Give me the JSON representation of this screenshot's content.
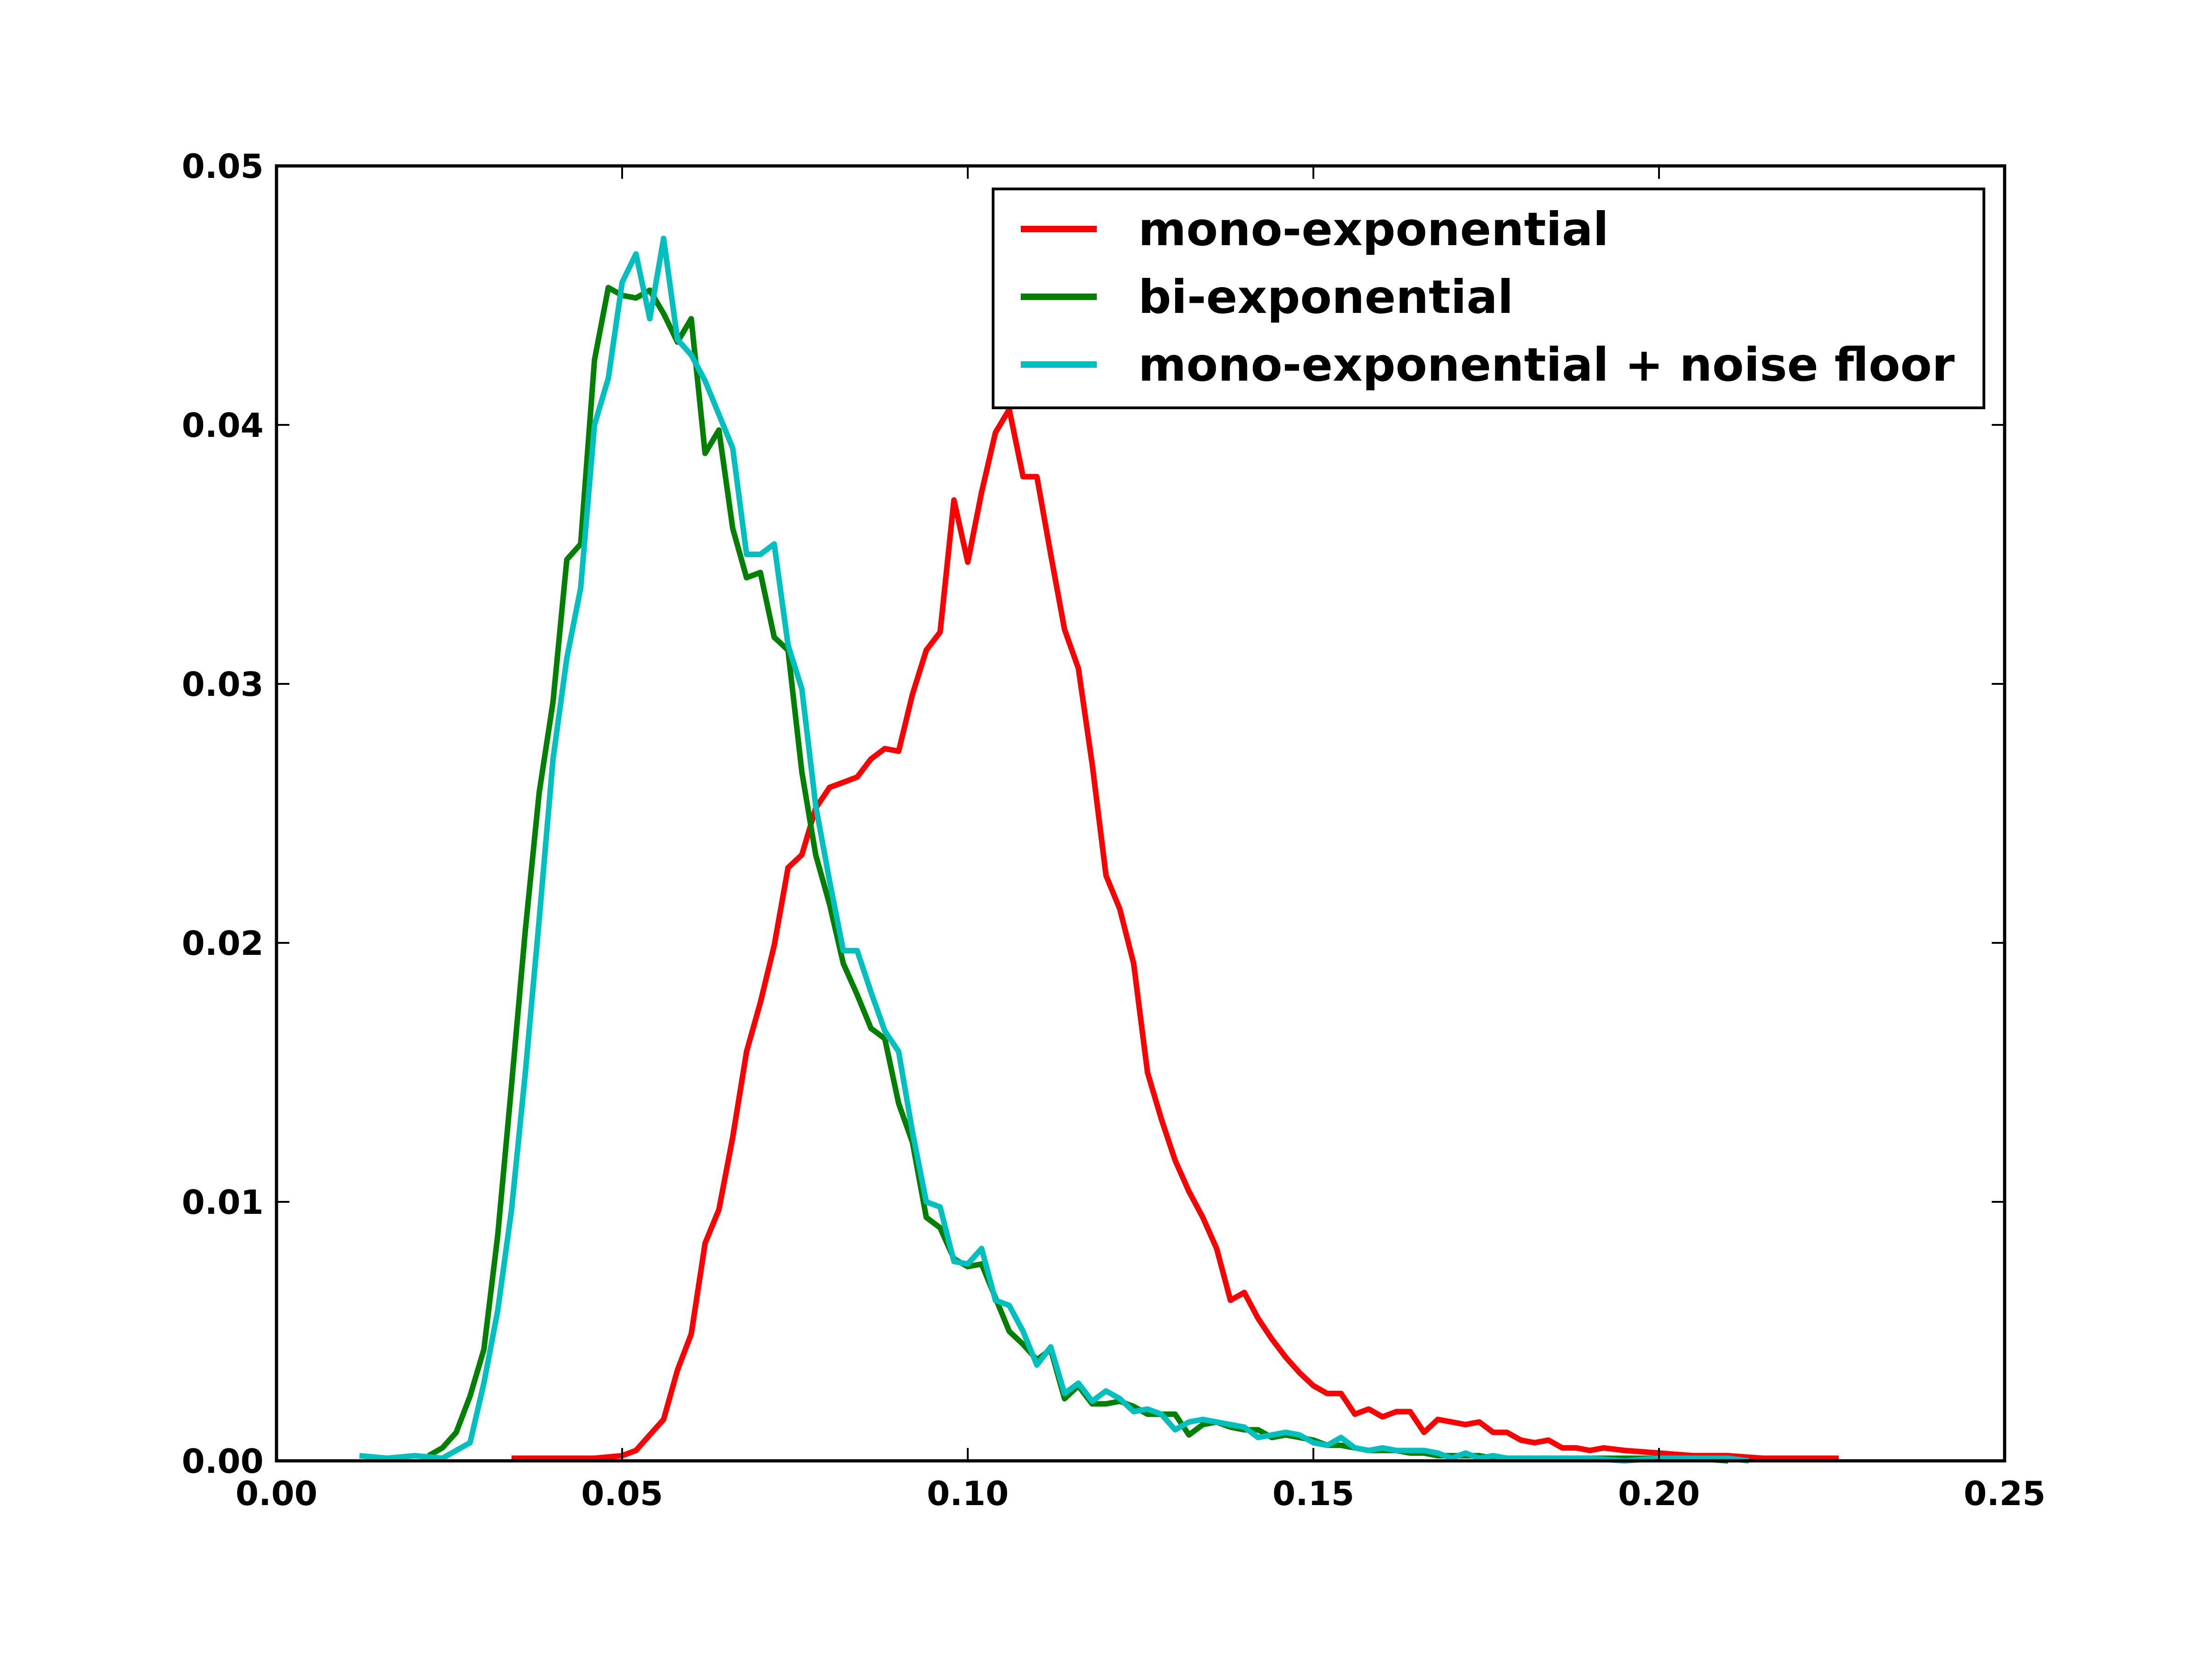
{
  "chart_data": {
    "type": "line",
    "title": "",
    "xlabel": "",
    "ylabel": "",
    "xlim": [
      0.0,
      0.25
    ],
    "ylim": [
      0.0,
      0.05
    ],
    "x_ticks": [
      "0.00",
      "0.05",
      "0.10",
      "0.15",
      "0.20",
      "0.25"
    ],
    "y_ticks": [
      "0.00",
      "0.01",
      "0.02",
      "0.03",
      "0.04",
      "0.05"
    ],
    "grid": false,
    "legend_position": "top-right",
    "series": [
      {
        "name": "mono-exponential",
        "color": "#ff0000",
        "x": [
          0.034,
          0.038,
          0.042,
          0.046,
          0.05,
          0.052,
          0.054,
          0.056,
          0.058,
          0.06,
          0.062,
          0.064,
          0.066,
          0.068,
          0.07,
          0.072,
          0.074,
          0.076,
          0.078,
          0.08,
          0.082,
          0.084,
          0.086,
          0.088,
          0.09,
          0.092,
          0.094,
          0.096,
          0.098,
          0.1,
          0.102,
          0.104,
          0.106,
          0.108,
          0.11,
          0.112,
          0.114,
          0.116,
          0.118,
          0.12,
          0.122,
          0.124,
          0.126,
          0.128,
          0.13,
          0.132,
          0.134,
          0.136,
          0.138,
          0.14,
          0.142,
          0.144,
          0.146,
          0.148,
          0.15,
          0.152,
          0.154,
          0.156,
          0.158,
          0.16,
          0.162,
          0.164,
          0.166,
          0.168,
          0.17,
          0.172,
          0.174,
          0.176,
          0.178,
          0.18,
          0.182,
          0.184,
          0.186,
          0.188,
          0.19,
          0.192,
          0.195,
          0.2,
          0.205,
          0.21,
          0.215,
          0.22,
          0.226
        ],
        "y": [
          0.0001,
          0.0001,
          0.0001,
          0.0001,
          0.0002,
          0.0004,
          0.001,
          0.0016,
          0.0035,
          0.0049,
          0.0084,
          0.0097,
          0.0125,
          0.0158,
          0.0177,
          0.0199,
          0.0229,
          0.0234,
          0.0252,
          0.026,
          0.0262,
          0.0264,
          0.0271,
          0.0275,
          0.0274,
          0.0296,
          0.0313,
          0.032,
          0.0371,
          0.0347,
          0.0374,
          0.0397,
          0.0406,
          0.038,
          0.038,
          0.035,
          0.0321,
          0.0306,
          0.0269,
          0.0226,
          0.0213,
          0.0192,
          0.015,
          0.0132,
          0.0116,
          0.0104,
          0.0094,
          0.0082,
          0.0062,
          0.0065,
          0.0055,
          0.0047,
          0.004,
          0.0034,
          0.0029,
          0.0026,
          0.0026,
          0.0018,
          0.002,
          0.0017,
          0.0019,
          0.0019,
          0.0011,
          0.0016,
          0.0015,
          0.0014,
          0.0015,
          0.0011,
          0.0011,
          0.0008,
          0.0007,
          0.0008,
          0.0005,
          0.0005,
          0.0004,
          0.0005,
          0.0004,
          0.0003,
          0.0002,
          0.0002,
          0.0001,
          0.0001,
          0.0001
        ]
      },
      {
        "name": "bi-exponential",
        "color": "#008000",
        "x": [
          0.022,
          0.024,
          0.026,
          0.028,
          0.03,
          0.032,
          0.034,
          0.036,
          0.038,
          0.04,
          0.042,
          0.044,
          0.046,
          0.048,
          0.05,
          0.052,
          0.054,
          0.056,
          0.058,
          0.06,
          0.062,
          0.064,
          0.066,
          0.068,
          0.07,
          0.072,
          0.074,
          0.076,
          0.078,
          0.08,
          0.082,
          0.084,
          0.086,
          0.088,
          0.09,
          0.092,
          0.094,
          0.096,
          0.098,
          0.1,
          0.102,
          0.104,
          0.106,
          0.108,
          0.11,
          0.112,
          0.114,
          0.116,
          0.118,
          0.12,
          0.122,
          0.124,
          0.126,
          0.128,
          0.13,
          0.132,
          0.134,
          0.136,
          0.138,
          0.14,
          0.142,
          0.144,
          0.146,
          0.148,
          0.15,
          0.152,
          0.154,
          0.156,
          0.158,
          0.16,
          0.162,
          0.164,
          0.166,
          0.168,
          0.17,
          0.172,
          0.174,
          0.176,
          0.178,
          0.18,
          0.185,
          0.19,
          0.195,
          0.2,
          0.205,
          0.21
        ],
        "y": [
          0.0002,
          0.0005,
          0.0011,
          0.0025,
          0.0043,
          0.0087,
          0.0145,
          0.0205,
          0.0258,
          0.0293,
          0.0348,
          0.0354,
          0.0425,
          0.0453,
          0.045,
          0.0449,
          0.0452,
          0.0443,
          0.0432,
          0.0441,
          0.0389,
          0.0398,
          0.036,
          0.0341,
          0.0343,
          0.0318,
          0.0313,
          0.0266,
          0.0234,
          0.0215,
          0.0192,
          0.018,
          0.0167,
          0.0163,
          0.0138,
          0.0123,
          0.0094,
          0.009,
          0.0078,
          0.0075,
          0.0076,
          0.0063,
          0.005,
          0.0045,
          0.0039,
          0.0043,
          0.0024,
          0.0029,
          0.0022,
          0.0022,
          0.0023,
          0.0021,
          0.0018,
          0.0018,
          0.0018,
          0.001,
          0.0014,
          0.0015,
          0.0013,
          0.0012,
          0.0012,
          0.0009,
          0.001,
          0.0009,
          0.0008,
          0.0006,
          0.0006,
          0.0005,
          0.0004,
          0.0004,
          0.0004,
          0.0003,
          0.0003,
          0.0002,
          0.0002,
          0.0002,
          0.0002,
          0.0001,
          0.0001,
          0.0001,
          0.0001,
          0.0001,
          0.0001,
          0.0001,
          0.0001,
          0.0
        ]
      },
      {
        "name": "mono-exponential + noise floor",
        "color": "#00bfbf",
        "x": [
          0.012,
          0.016,
          0.02,
          0.024,
          0.026,
          0.028,
          0.03,
          0.032,
          0.034,
          0.036,
          0.038,
          0.04,
          0.042,
          0.044,
          0.046,
          0.048,
          0.05,
          0.052,
          0.054,
          0.056,
          0.058,
          0.06,
          0.062,
          0.064,
          0.066,
          0.068,
          0.07,
          0.072,
          0.074,
          0.076,
          0.078,
          0.08,
          0.082,
          0.084,
          0.086,
          0.088,
          0.09,
          0.092,
          0.094,
          0.096,
          0.098,
          0.1,
          0.102,
          0.104,
          0.106,
          0.108,
          0.11,
          0.112,
          0.114,
          0.116,
          0.118,
          0.12,
          0.122,
          0.124,
          0.126,
          0.128,
          0.13,
          0.132,
          0.134,
          0.136,
          0.138,
          0.14,
          0.142,
          0.144,
          0.146,
          0.148,
          0.15,
          0.152,
          0.154,
          0.156,
          0.158,
          0.16,
          0.162,
          0.164,
          0.166,
          0.168,
          0.17,
          0.172,
          0.174,
          0.176,
          0.178,
          0.18,
          0.185,
          0.19,
          0.195,
          0.2,
          0.205,
          0.21,
          0.213
        ],
        "y": [
          0.0002,
          0.0001,
          0.0002,
          0.0001,
          0.0004,
          0.0007,
          0.003,
          0.0058,
          0.0097,
          0.015,
          0.0209,
          0.0271,
          0.031,
          0.0337,
          0.04,
          0.0418,
          0.0455,
          0.0466,
          0.0441,
          0.0472,
          0.0433,
          0.0427,
          0.0417,
          0.0404,
          0.0391,
          0.035,
          0.035,
          0.0354,
          0.0315,
          0.0298,
          0.0253,
          0.0224,
          0.0197,
          0.0197,
          0.0181,
          0.0166,
          0.0158,
          0.0127,
          0.01,
          0.0098,
          0.0077,
          0.0076,
          0.0082,
          0.0062,
          0.006,
          0.005,
          0.0037,
          0.0044,
          0.0026,
          0.003,
          0.0023,
          0.0027,
          0.0024,
          0.0019,
          0.002,
          0.0018,
          0.0012,
          0.0015,
          0.0016,
          0.0015,
          0.0014,
          0.0013,
          0.0009,
          0.001,
          0.0011,
          0.001,
          0.0007,
          0.0006,
          0.0009,
          0.0005,
          0.0004,
          0.0005,
          0.0004,
          0.0004,
          0.0004,
          0.0003,
          0.0001,
          0.0003,
          0.0001,
          0.0002,
          0.0001,
          0.0001,
          0.0001,
          0.0001,
          0.0,
          0.0001,
          0.0001,
          0.0001,
          0.0
        ]
      }
    ]
  }
}
